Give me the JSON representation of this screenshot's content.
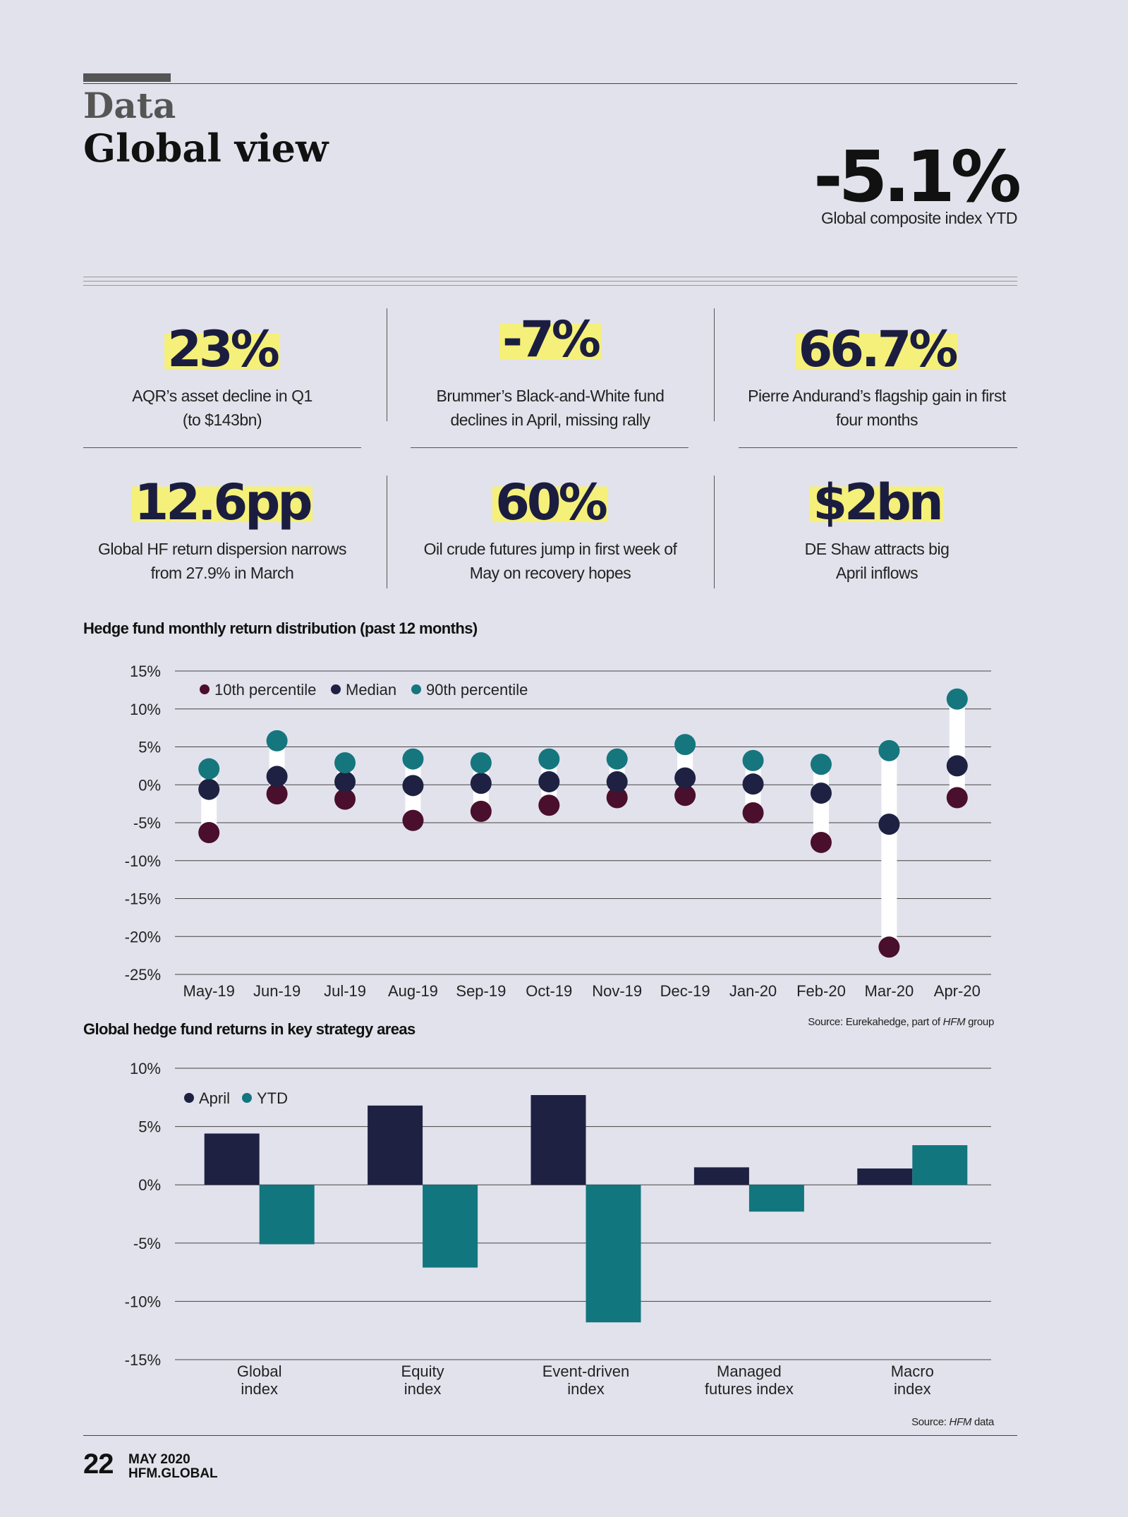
{
  "header": {
    "section_label": "Data",
    "section_title": "Global view",
    "headline_stat": "-5.1%",
    "headline_caption": "Global composite index YTD"
  },
  "kpis": [
    {
      "value": "23%",
      "caption_line1": "AQR’s asset decline in Q1",
      "caption_line2": "(to $143bn)"
    },
    {
      "value": "-7%",
      "caption_line1": "Brummer’s Black-and-White fund",
      "caption_line2": "declines in April, missing rally"
    },
    {
      "value": "66.7%",
      "caption_line1": "Pierre Andurand’s flagship gain in first",
      "caption_line2": "four months"
    },
    {
      "value": "12.6pp",
      "caption_line1": "Global HF return dispersion narrows",
      "caption_line2": "from 27.9% in March"
    },
    {
      "value": "60%",
      "caption_line1": "Oil crude futures jump in first week of",
      "caption_line2": "May on recovery hopes"
    },
    {
      "value": "$2bn",
      "caption_line1": "DE Shaw attracts big",
      "caption_line2": "April inflows"
    }
  ],
  "chart_data": [
    {
      "type": "scatter",
      "title": "Hedge fund monthly return distribution (past 12 months)",
      "source_prefix": "Source: Eurekahedge, part of ",
      "source_italic": "HFM",
      "source_suffix": " group",
      "categories": [
        "May-19",
        "Jun-19",
        "Jul-19",
        "Aug-19",
        "Sep-19",
        "Oct-19",
        "Nov-19",
        "Dec-19",
        "Jan-20",
        "Feb-20",
        "Mar-20",
        "Apr-20"
      ],
      "series": [
        {
          "name": "10th percentile",
          "color": "#4a0f2c",
          "values": [
            -6.3,
            -1.2,
            -1.9,
            -4.7,
            -3.5,
            -2.7,
            -1.7,
            -1.4,
            -3.7,
            -7.6,
            -21.4,
            -1.7
          ]
        },
        {
          "name": "Median",
          "color": "#1e2142",
          "values": [
            -0.6,
            1.1,
            0.4,
            -0.1,
            0.2,
            0.4,
            0.4,
            0.9,
            0.1,
            -1.1,
            -5.2,
            2.5
          ]
        },
        {
          "name": "90th percentile",
          "color": "#15767e",
          "values": [
            2.1,
            5.8,
            2.9,
            3.4,
            2.9,
            3.4,
            3.4,
            5.3,
            3.2,
            2.7,
            4.5,
            11.3
          ]
        }
      ],
      "ylim": [
        -25,
        15
      ],
      "yticks": [
        "15%",
        "10%",
        "5%",
        "0%",
        "-5%",
        "-10%",
        "-15%",
        "-20%",
        "-25%"
      ],
      "grid": true,
      "legend_position": "top-left"
    },
    {
      "type": "bar",
      "title": "Global hedge fund returns in key strategy areas",
      "source_prefix": "Source: ",
      "source_italic": "HFM",
      "source_suffix": " data",
      "categories": [
        {
          "line1": "Global",
          "line2": "index"
        },
        {
          "line1": "Equity",
          "line2": "index"
        },
        {
          "line1": "Event-driven",
          "line2": "index"
        },
        {
          "line1": "Managed",
          "line2": "futures index"
        },
        {
          "line1": "Macro",
          "line2": "index"
        }
      ],
      "series": [
        {
          "name": "April",
          "color": "#1e2142",
          "values": [
            4.4,
            6.8,
            7.7,
            1.5,
            1.4
          ]
        },
        {
          "name": "YTD",
          "color": "#12767e",
          "values": [
            -5.1,
            -7.1,
            -11.8,
            -2.3,
            3.4
          ]
        }
      ],
      "ylim": [
        -15,
        10
      ],
      "yticks": [
        "10%",
        "5%",
        "0%",
        "-5%",
        "-10%",
        "-15%"
      ],
      "grid": true,
      "legend_position": "top-left"
    }
  ],
  "footer": {
    "page_number": "22",
    "issue": "MAY 2020",
    "site": "HFM.GLOBAL"
  }
}
